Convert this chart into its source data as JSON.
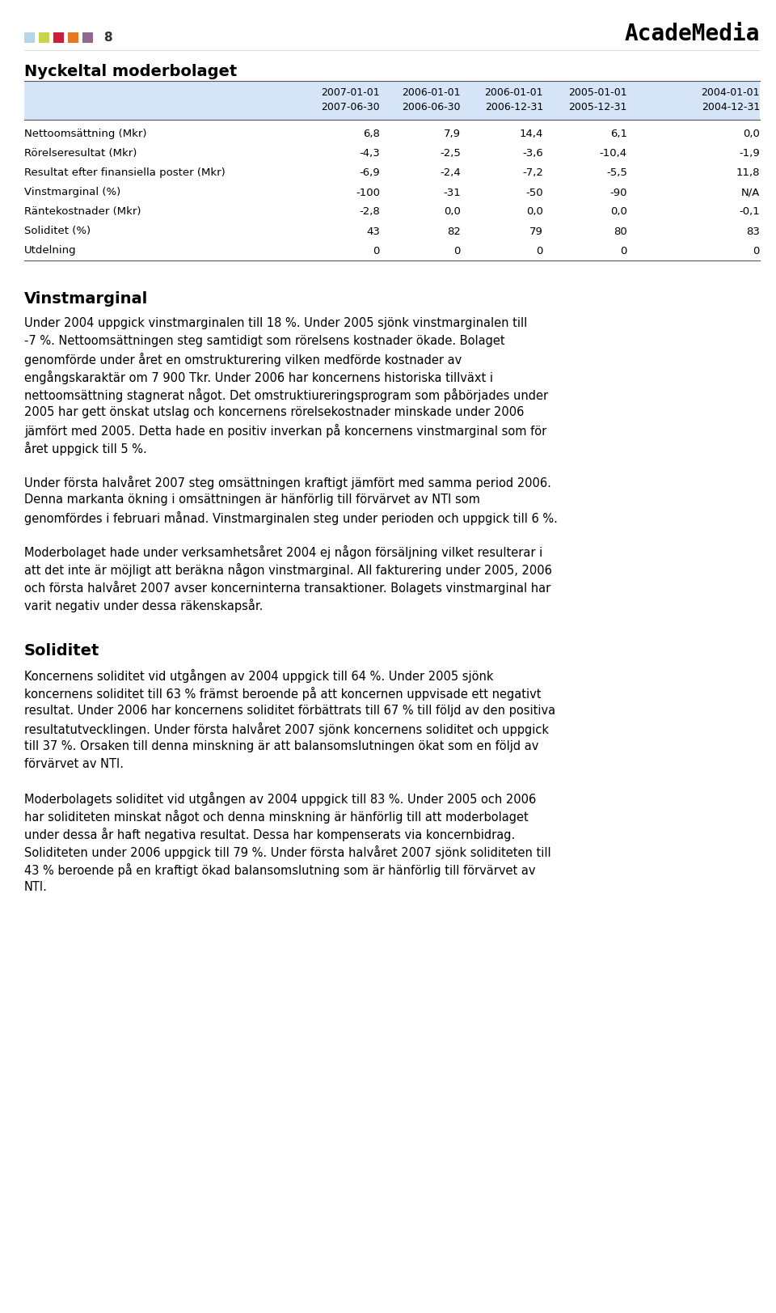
{
  "logo_text": "AcadeMedia",
  "page_title": "Nyckeltal moderbolaget",
  "table_header_row1": [
    "",
    "2007-01-01",
    "2006-01-01",
    "2006-01-01",
    "2005-01-01",
    "2004-01-01"
  ],
  "table_header_row2": [
    "",
    "2007-06-30",
    "2006-06-30",
    "2006-12-31",
    "2005-12-31",
    "2004-12-31"
  ],
  "table_rows": [
    [
      "Nettoomsättning (Mkr)",
      "6,8",
      "7,9",
      "14,4",
      "6,1",
      "0,0"
    ],
    [
      "Rörelseresultat (Mkr)",
      "-4,3",
      "-2,5",
      "-3,6",
      "-10,4",
      "-1,9"
    ],
    [
      "Resultat efter finansiella poster (Mkr)",
      "-6,9",
      "-2,4",
      "-7,2",
      "-5,5",
      "11,8"
    ],
    [
      "Vinstmarginal (%)",
      "-100",
      "-31",
      "-50",
      "-90",
      "N/A"
    ],
    [
      "Räntekostnader (Mkr)",
      "-2,8",
      "0,0",
      "0,0",
      "0,0",
      "-0,1"
    ],
    [
      "Soliditet (%)",
      "43",
      "82",
      "79",
      "80",
      "83"
    ],
    [
      "Utdelning",
      "0",
      "0",
      "0",
      "0",
      "0"
    ]
  ],
  "header_bg": "#d6e4f7",
  "section_title_vinstmarginal": "Vinstmarginal",
  "section_title_soliditet": "Soliditet",
  "para_vm1_lines": [
    "Under 2004 uppgick vinstmarginalen till 18 %. Under 2005 sjönk vinstmarginalen till",
    "-7 %. Nettoomsättningen steg samtidigt som rörelsens kostnader ökade. Bolaget",
    "genomförde under året en omstrukturering vilken medförde kostnader av",
    "engångskaraktär om 7 900 Tkr. Under 2006 har koncernens historiska tillväxt i",
    "nettoomsättning stagnerat något. Det omstruktiureringsprogram som påbörjades under",
    "2005 har gett önskat utslag och koncernens rörelsekostnader minskade under 2006",
    "jämfört med 2005. Detta hade en positiv inverkan på koncernens vinstmarginal som för",
    "året uppgick till 5 %."
  ],
  "para_vm2_lines": [
    "Under första halvåret 2007 steg omsättningen kraftigt jämfört med samma period 2006.",
    "Denna markanta ökning i omsättningen är hänförlig till förvärvet av NTI som",
    "genomfördes i februari månad. Vinstmarginalen steg under perioden och uppgick till 6 %."
  ],
  "para_vm3_lines": [
    "Moderbolaget hade under verksamhetsåret 2004 ej någon försäljning vilket resulterar i",
    "att det inte är möjligt att beräkna någon vinstmarginal. All fakturering under 2005, 2006",
    "och första halvåret 2007 avser koncerninterna transaktioner. Bolagets vinstmarginal har",
    "varit negativ under dessa räkenskapsår."
  ],
  "para_sol1_lines": [
    "Koncernens soliditet vid utgången av 2004 uppgick till 64 %. Under 2005 sjönk",
    "koncernens soliditet till 63 % främst beroende på att koncernen uppvisade ett negativt",
    "resultat. Under 2006 har koncernens soliditet förbättrats till 67 % till följd av den positiva",
    "resultatutvecklingen. Under första halvåret 2007 sjönk koncernens soliditet och uppgick",
    "till 37 %. Orsaken till denna minskning är att balansomslutningen ökat som en följd av",
    "förvärvet av NTI."
  ],
  "para_sol2_lines": [
    "Moderbolagets soliditet vid utgången av 2004 uppgick till 83 %. Under 2005 och 2006",
    "har soliditeten minskat något och denna minskning är hänförlig till att moderbolaget",
    "under dessa år haft negativa resultat. Dessa har kompenserats via koncernbidrag.",
    "Soliditeten under 2006 uppgick till 79 %. Under första halvåret 2007 sjönk soliditeten till",
    "43 % beroende på en kraftigt ökad balansomslutning som är hänförlig till förvärvet av",
    "NTI."
  ],
  "footer_colors": [
    "#b8d4e8",
    "#c8d44c",
    "#c8203c",
    "#e87820",
    "#906890"
  ],
  "footer_page": "8",
  "bg_color": "#ffffff"
}
